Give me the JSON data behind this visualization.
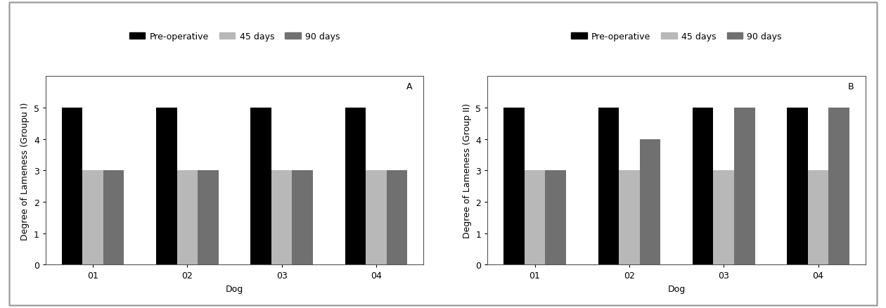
{
  "panel_A": {
    "label": "A",
    "ylabel": "Degree of Lameness (Groupu I)",
    "dogs": [
      "01",
      "02",
      "03",
      "04"
    ],
    "preop": [
      5,
      5,
      5,
      5
    ],
    "days45": [
      3,
      3,
      3,
      3
    ],
    "days90": [
      3,
      3,
      3,
      3
    ]
  },
  "panel_B": {
    "label": "B",
    "ylabel": "Degree of Lameness (Group II)",
    "dogs": [
      "01",
      "02",
      "03",
      "04"
    ],
    "preop": [
      5,
      5,
      5,
      5
    ],
    "days45": [
      3,
      3,
      3,
      3
    ],
    "days90": [
      3,
      4,
      5,
      5
    ]
  },
  "xlabel": "Dog",
  "legend_labels": [
    "Pre-operative",
    "45 days",
    "90 days"
  ],
  "colors": {
    "preop": "#000000",
    "days45": "#b8b8b8",
    "days90": "#707070"
  },
  "ylim": [
    0,
    6
  ],
  "yticks": [
    0,
    1,
    2,
    3,
    4,
    5,
    6
  ],
  "bar_width": 0.22,
  "figure_bg": "#ffffff",
  "axes_bg": "#ffffff",
  "font_size": 9,
  "legend_font_size": 9,
  "label_font_size": 9,
  "tick_font_size": 9
}
